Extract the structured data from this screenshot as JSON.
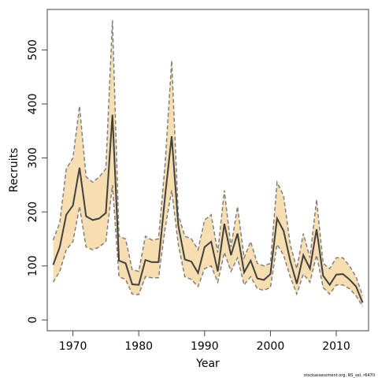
{
  "chart_data": {
    "type": "line",
    "xlabel": "Year",
    "ylabel": "Recruits",
    "xlim": [
      1966.1,
      2014.9
    ],
    "ylim": [
      -20,
      575
    ],
    "x_ticks": [
      1970,
      1980,
      1990,
      2000,
      2010
    ],
    "y_ticks": [
      0,
      100,
      200,
      300,
      400,
      500
    ],
    "grid": false,
    "legend": "none",
    "colors": {
      "band": "#f6deb0",
      "bound": "#808080",
      "estimate": "#404040"
    },
    "x": [
      1967,
      1968,
      1969,
      1970,
      1971,
      1972,
      1973,
      1974,
      1975,
      1976,
      1977,
      1978,
      1979,
      1980,
      1981,
      1982,
      1983,
      1984,
      1985,
      1986,
      1987,
      1988,
      1989,
      1990,
      1991,
      1992,
      1993,
      1994,
      1995,
      1996,
      1997,
      1998,
      1999,
      2000,
      2001,
      2002,
      2003,
      2004,
      2005,
      2006,
      2007,
      2008,
      2009,
      2010,
      2011,
      2012,
      2013,
      2014
    ],
    "series": [
      {
        "role": "upper",
        "values": [
          148,
          180,
          280,
          300,
          396,
          265,
          255,
          265,
          280,
          555,
          155,
          150,
          93,
          90,
          155,
          148,
          150,
          290,
          480,
          195,
          155,
          150,
          130,
          185,
          195,
          125,
          240,
          135,
          210,
          115,
          145,
          105,
          100,
          105,
          255,
          230,
          140,
          95,
          160,
          115,
          223,
          105,
          95,
          115,
          115,
          100,
          80,
          45
        ]
      },
      {
        "role": "estimate",
        "values": [
          102,
          135,
          195,
          212,
          282,
          192,
          185,
          188,
          198,
          380,
          110,
          105,
          66,
          65,
          111,
          107,
          107,
          230,
          340,
          175,
          112,
          108,
          87,
          135,
          145,
          90,
          178,
          120,
          160,
          88,
          110,
          77,
          74,
          85,
          188,
          165,
          110,
          67,
          120,
          95,
          168,
          82,
          65,
          84,
          85,
          75,
          62,
          32
        ]
      },
      {
        "role": "lower",
        "values": [
          70,
          90,
          130,
          145,
          210,
          135,
          130,
          135,
          145,
          250,
          80,
          75,
          48,
          47,
          80,
          78,
          78,
          170,
          240,
          140,
          80,
          75,
          62,
          95,
          100,
          70,
          125,
          90,
          115,
          65,
          80,
          58,
          55,
          60,
          140,
          120,
          80,
          48,
          85,
          70,
          120,
          60,
          48,
          65,
          65,
          58,
          45,
          25
        ]
      }
    ]
  },
  "credit": "stockassessment.org, NS_sel, r6470"
}
